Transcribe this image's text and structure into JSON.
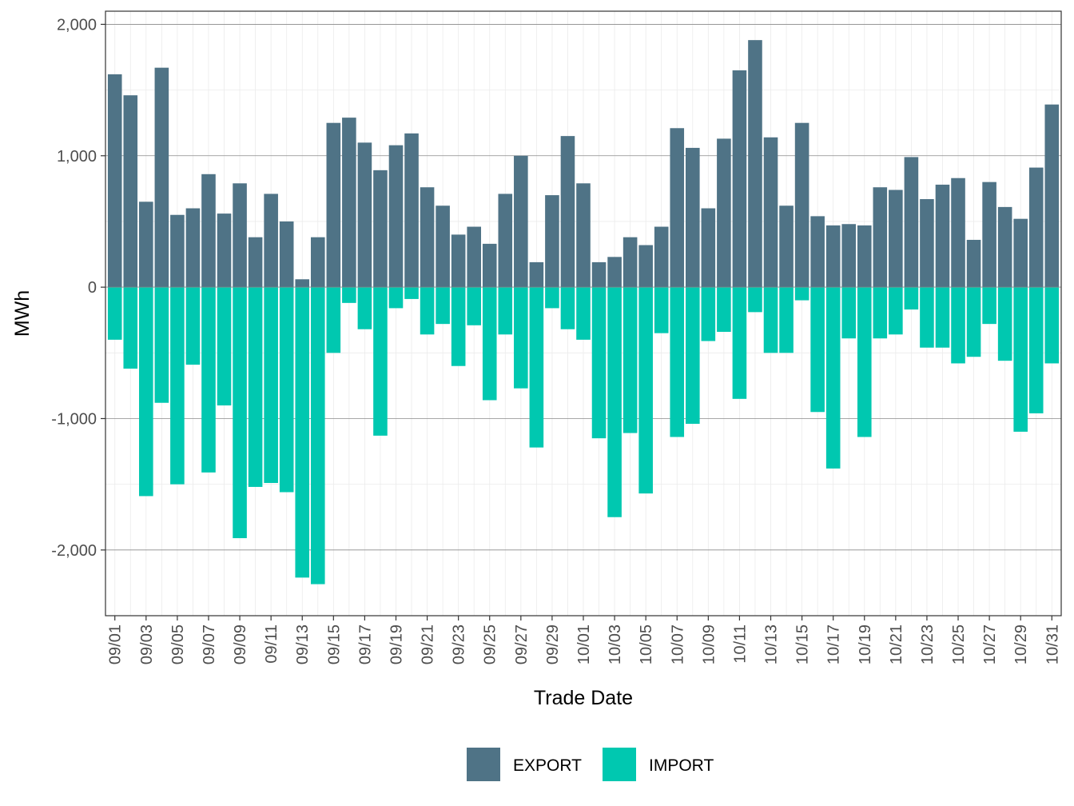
{
  "chart_data": {
    "type": "bar",
    "xlabel": "Trade Date",
    "ylabel": "MWh",
    "ylim": [
      -2500,
      2100
    ],
    "y_ticks": [
      2000,
      1000,
      0,
      -1000,
      -2000
    ],
    "y_tick_labels": [
      "2,000",
      "1,000",
      "0",
      "-1,000",
      "-2,000"
    ],
    "grid": true,
    "legend_position": "bottom",
    "categories": [
      "09/01",
      "09/02",
      "09/03",
      "09/04",
      "09/05",
      "09/06",
      "09/07",
      "09/08",
      "09/09",
      "09/10",
      "09/11",
      "09/12",
      "09/13",
      "09/14",
      "09/15",
      "09/16",
      "09/17",
      "09/18",
      "09/19",
      "09/20",
      "09/21",
      "09/22",
      "09/23",
      "09/24",
      "09/25",
      "09/26",
      "09/27",
      "09/28",
      "09/29",
      "09/30",
      "10/01",
      "10/02",
      "10/03",
      "10/04",
      "10/05",
      "10/06",
      "10/07",
      "10/08",
      "10/09",
      "10/10",
      "10/11",
      "10/12",
      "10/13",
      "10/14",
      "10/15",
      "10/16",
      "10/17",
      "10/18",
      "10/19",
      "10/20",
      "10/21",
      "10/22",
      "10/23",
      "10/24",
      "10/25",
      "10/26",
      "10/27",
      "10/28",
      "10/29",
      "10/30",
      "10/31"
    ],
    "x_tick_labels": [
      "09/01",
      "09/03",
      "09/05",
      "09/07",
      "09/09",
      "09/11",
      "09/13",
      "09/15",
      "09/17",
      "09/19",
      "09/21",
      "09/23",
      "09/25",
      "09/27",
      "09/29",
      "10/01",
      "10/03",
      "10/05",
      "10/07",
      "10/09",
      "10/11",
      "10/13",
      "10/15",
      "10/17",
      "10/19",
      "10/21",
      "10/23",
      "10/25",
      "10/27",
      "10/29",
      "10/31"
    ],
    "series": [
      {
        "name": "EXPORT",
        "color": "#4f7386",
        "values": [
          1620,
          1460,
          650,
          1670,
          550,
          600,
          860,
          560,
          790,
          380,
          710,
          500,
          60,
          380,
          1250,
          1290,
          1100,
          890,
          1080,
          1170,
          760,
          620,
          400,
          460,
          330,
          710,
          1000,
          190,
          700,
          1150,
          790,
          190,
          230,
          380,
          320,
          460,
          1210,
          1060,
          600,
          1130,
          1650,
          1880,
          1140,
          620,
          1250,
          540,
          470,
          480,
          470,
          760,
          740,
          990,
          670,
          780,
          830,
          360,
          800,
          610,
          520,
          910,
          1390
        ]
      },
      {
        "name": "IMPORT",
        "color": "#00c8b0",
        "values": [
          -400,
          -620,
          -1590,
          -880,
          -1500,
          -590,
          -1410,
          -900,
          -1910,
          -1520,
          -1490,
          -1560,
          -2210,
          -2260,
          -500,
          -120,
          -320,
          -1130,
          -160,
          -90,
          -360,
          -280,
          -600,
          -290,
          -860,
          -360,
          -770,
          -1220,
          -160,
          -320,
          -400,
          -1150,
          -1750,
          -1110,
          -1570,
          -350,
          -1140,
          -1040,
          -410,
          -340,
          -850,
          -190,
          -500,
          -500,
          -100,
          -950,
          -1380,
          -390,
          -1140,
          -390,
          -360,
          -170,
          -460,
          -460,
          -580,
          -530,
          -280,
          -560,
          -1100,
          -960,
          -580
        ]
      }
    ]
  }
}
